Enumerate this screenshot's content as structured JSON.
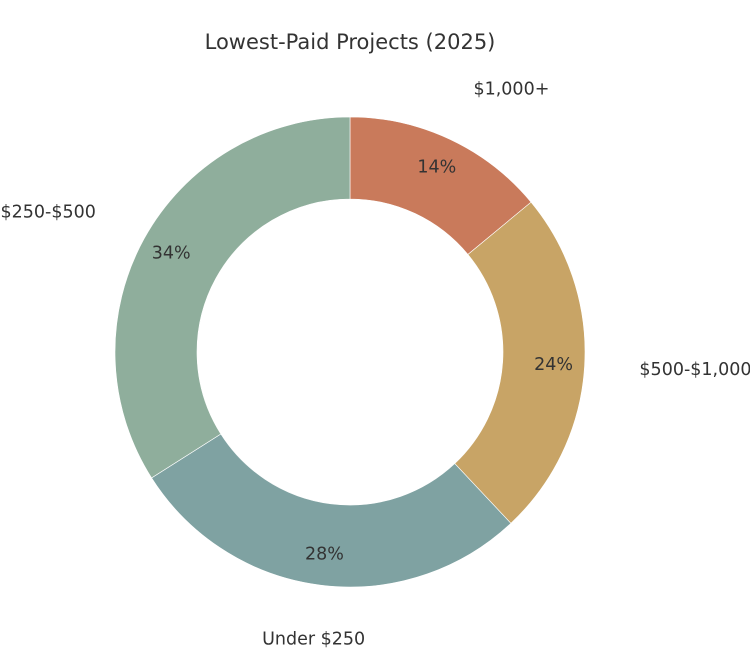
{
  "chart_data": {
    "type": "pie",
    "style": "donut",
    "title": "Lowest-Paid Projects (2025)",
    "categories": [
      "$1,000+",
      "$500-$1,000",
      "Under $250",
      "$250-$500"
    ],
    "values": [
      14,
      24,
      28,
      34
    ],
    "value_labels": [
      "14%",
      "24%",
      "28%",
      "34%"
    ],
    "colors": [
      "#c97a5b",
      "#c8a466",
      "#7fa2a2",
      "#8fae9c"
    ],
    "start": "12 o'clock",
    "direction": "clockwise",
    "legend": "none",
    "grid": false
  }
}
